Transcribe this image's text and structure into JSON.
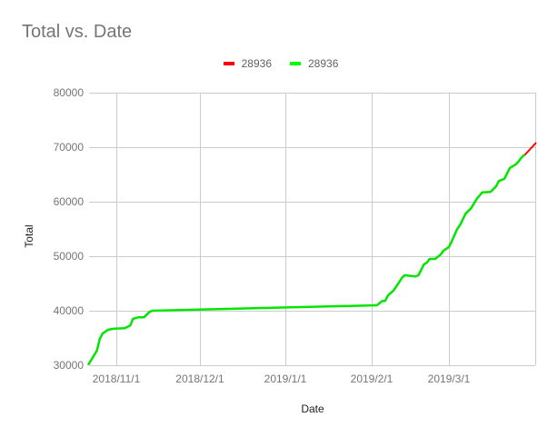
{
  "chart_data": {
    "type": "line",
    "title": "Total vs. Date",
    "xlabel": "Date",
    "ylabel": "Total",
    "ylim": [
      30000,
      80000
    ],
    "yticks": [
      30000,
      40000,
      50000,
      60000,
      70000,
      80000
    ],
    "xticks": [
      "2018/11/1",
      "2018/12/1",
      "2019/1/1",
      "2019/2/1",
      "2019/3/1"
    ],
    "xlim": [
      "2018/10/22",
      "2019/3/31"
    ],
    "grid": true,
    "legend_position": "top",
    "series": [
      {
        "name": "28936",
        "color": "#ff0000",
        "x": [
          "2019/3/28",
          "2019/3/31"
        ],
        "values": [
          68500,
          70800
        ]
      },
      {
        "name": "28936",
        "color": "#00ff00",
        "x": [
          "2018/10/22",
          "2018/10/23",
          "2018/10/25",
          "2018/10/26",
          "2018/10/27",
          "2018/10/29",
          "2018/10/31",
          "2018/11/4",
          "2018/11/6",
          "2018/11/7",
          "2018/11/9",
          "2018/11/11",
          "2018/11/13",
          "2018/11/14",
          "2019/2/3",
          "2019/2/5",
          "2019/2/6",
          "2019/2/7",
          "2019/2/9",
          "2019/2/11",
          "2019/2/12",
          "2019/2/13",
          "2019/2/17",
          "2019/2/18",
          "2019/2/19",
          "2019/2/20",
          "2019/2/21",
          "2019/2/22",
          "2019/2/24",
          "2019/2/26",
          "2019/2/27",
          "2019/3/1",
          "2019/3/2",
          "2019/3/4",
          "2019/3/5",
          "2019/3/7",
          "2019/3/9",
          "2019/3/11",
          "2019/3/13",
          "2019/3/16",
          "2019/3/18",
          "2019/3/19",
          "2019/3/21",
          "2019/3/22",
          "2019/3/23",
          "2019/3/25",
          "2019/3/26",
          "2019/3/27",
          "2019/3/28"
        ],
        "values": [
          30200,
          31000,
          32700,
          34800,
          35800,
          36500,
          36700,
          36800,
          37300,
          38500,
          38800,
          38800,
          39800,
          40000,
          41000,
          41800,
          41800,
          42800,
          43700,
          45200,
          46000,
          46500,
          46300,
          46500,
          47500,
          48500,
          48800,
          49500,
          49500,
          50300,
          51000,
          51700,
          52700,
          55000,
          55700,
          57800,
          58800,
          60500,
          61700,
          61800,
          62800,
          63800,
          64200,
          65200,
          66200,
          66800,
          67300,
          68000,
          68500
        ]
      }
    ]
  },
  "ui": {
    "title": "Total vs. Date",
    "legend": [
      {
        "label": "28936",
        "color": "#ff0000"
      },
      {
        "label": "28936",
        "color": "#00ff00"
      }
    ],
    "ytick_labels": [
      "80000",
      "70000",
      "60000",
      "50000",
      "40000",
      "30000"
    ],
    "xtick_labels": [
      "2018/11/1",
      "2018/12/1",
      "2019/1/1",
      "2019/2/1",
      "2019/3/1"
    ],
    "xlabel": "Date",
    "ylabel": "Total"
  }
}
